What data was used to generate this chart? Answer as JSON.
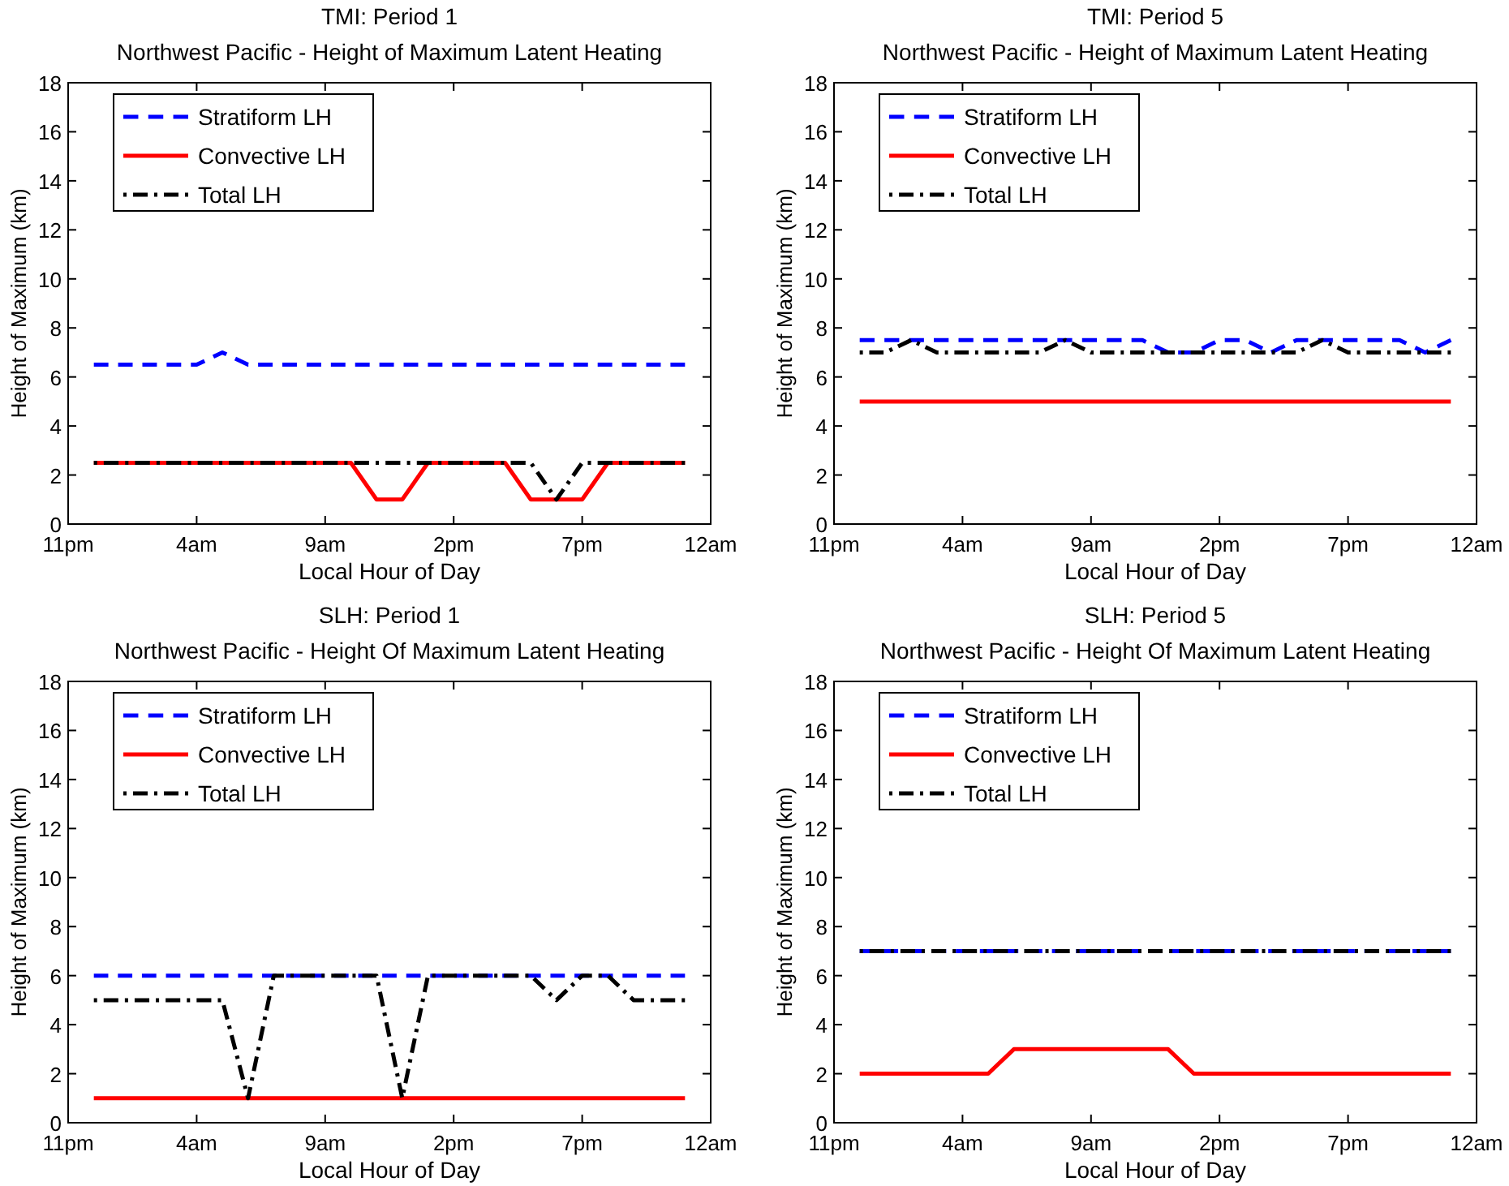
{
  "chart_data": [
    {
      "type": "line",
      "title": "TMI: Period 1",
      "subtitle": "Northwest Pacific - Height of Maximum Latent Heating",
      "xlabel": "Local Hour of Day",
      "ylabel": "Height of Maximum (km)",
      "categories": [
        "11pm",
        null,
        null,
        null,
        null,
        "4am",
        null,
        null,
        null,
        null,
        "9am",
        null,
        null,
        null,
        null,
        "2pm",
        null,
        null,
        null,
        null,
        "7pm",
        null,
        null,
        null,
        null,
        "12am"
      ],
      "ylim": [
        0,
        18
      ],
      "yticks": [
        0,
        2,
        4,
        6,
        8,
        10,
        12,
        14,
        16,
        18
      ],
      "legend": "top left",
      "series": [
        {
          "name": "Stratiform LH",
          "color": "#0000ff",
          "line_style": "dashed",
          "values": [
            null,
            6.5,
            6.5,
            6.5,
            6.5,
            6.5,
            7,
            6.5,
            6.5,
            6.5,
            6.5,
            6.5,
            6.5,
            6.5,
            6.5,
            6.5,
            6.5,
            6.5,
            6.5,
            6.5,
            6.5,
            6.5,
            6.5,
            6.5,
            6.5,
            null
          ]
        },
        {
          "name": "Convective LH",
          "color": "#ff0000",
          "line_style": "solid",
          "values": [
            null,
            2.5,
            2.5,
            2.5,
            2.5,
            2.5,
            2.5,
            2.5,
            2.5,
            2.5,
            2.5,
            2.5,
            1,
            1,
            2.5,
            2.5,
            2.5,
            2.5,
            1,
            1,
            1,
            2.5,
            2.5,
            2.5,
            2.5,
            null
          ]
        },
        {
          "name": "Total LH",
          "color": "#000000",
          "line_style": "dashdot",
          "values": [
            null,
            2.5,
            2.5,
            2.5,
            2.5,
            2.5,
            2.5,
            2.5,
            2.5,
            2.5,
            2.5,
            2.5,
            2.5,
            2.5,
            2.5,
            2.5,
            2.5,
            2.5,
            2.5,
            1,
            2.5,
            2.5,
            2.5,
            2.5,
            2.5,
            null
          ]
        }
      ]
    },
    {
      "type": "line",
      "title": "TMI: Period 5",
      "subtitle": "Northwest Pacific - Height of Maximum Latent Heating",
      "xlabel": "Local Hour of Day",
      "ylabel": "Height of Maximum (km)",
      "categories": [
        "11pm",
        null,
        null,
        null,
        null,
        "4am",
        null,
        null,
        null,
        null,
        "9am",
        null,
        null,
        null,
        null,
        "2pm",
        null,
        null,
        null,
        null,
        "7pm",
        null,
        null,
        null,
        null,
        "12am"
      ],
      "ylim": [
        0,
        18
      ],
      "yticks": [
        0,
        2,
        4,
        6,
        8,
        10,
        12,
        14,
        16,
        18
      ],
      "legend": "top left",
      "series": [
        {
          "name": "Stratiform LH",
          "color": "#0000ff",
          "line_style": "dashed",
          "values": [
            null,
            7.5,
            7.5,
            7.5,
            7.5,
            7.5,
            7.5,
            7.5,
            7.5,
            7.5,
            7.5,
            7.5,
            7.5,
            7,
            7,
            7.5,
            7.5,
            7,
            7.5,
            7.5,
            7.5,
            7.5,
            7.5,
            7,
            7.5,
            null
          ]
        },
        {
          "name": "Convective LH",
          "color": "#ff0000",
          "line_style": "solid",
          "values": [
            null,
            5,
            5,
            5,
            5,
            5,
            5,
            5,
            5,
            5,
            5,
            5,
            5,
            5,
            5,
            5,
            5,
            5,
            5,
            5,
            5,
            5,
            5,
            5,
            5,
            null
          ]
        },
        {
          "name": "Total LH",
          "color": "#000000",
          "line_style": "dashdot",
          "values": [
            null,
            7,
            7,
            7.5,
            7,
            7,
            7,
            7,
            7,
            7.5,
            7,
            7,
            7,
            7,
            7,
            7,
            7,
            7,
            7,
            7.5,
            7,
            7,
            7,
            7,
            7,
            null
          ]
        }
      ]
    },
    {
      "type": "line",
      "title": "SLH: Period 1",
      "subtitle": "Northwest Pacific - Height Of Maximum Latent Heating",
      "xlabel": "Local Hour of Day",
      "ylabel": "Height of Maximum (km)",
      "categories": [
        "11pm",
        null,
        null,
        null,
        null,
        "4am",
        null,
        null,
        null,
        null,
        "9am",
        null,
        null,
        null,
        null,
        "2pm",
        null,
        null,
        null,
        null,
        "7pm",
        null,
        null,
        null,
        null,
        "12am"
      ],
      "ylim": [
        0,
        18
      ],
      "yticks": [
        0,
        2,
        4,
        6,
        8,
        10,
        12,
        14,
        16,
        18
      ],
      "legend": "top left",
      "series": [
        {
          "name": "Stratiform LH",
          "color": "#0000ff",
          "line_style": "dashed",
          "values": [
            null,
            6,
            6,
            6,
            6,
            6,
            6,
            6,
            6,
            6,
            6,
            6,
            6,
            6,
            6,
            6,
            6,
            6,
            6,
            6,
            6,
            6,
            6,
            6,
            6,
            null
          ]
        },
        {
          "name": "Convective LH",
          "color": "#ff0000",
          "line_style": "solid",
          "values": [
            null,
            1,
            1,
            1,
            1,
            1,
            1,
            1,
            1,
            1,
            1,
            1,
            1,
            1,
            1,
            1,
            1,
            1,
            1,
            1,
            1,
            1,
            1,
            1,
            1,
            null
          ]
        },
        {
          "name": "Total LH",
          "color": "#000000",
          "line_style": "dashdot",
          "values": [
            null,
            5,
            5,
            5,
            5,
            5,
            5,
            1,
            6,
            6,
            6,
            6,
            6,
            1,
            6,
            6,
            6,
            6,
            6,
            5,
            6,
            6,
            5,
            5,
            5,
            null
          ]
        }
      ]
    },
    {
      "type": "line",
      "title": "SLH: Period 5",
      "subtitle": "Northwest Pacific - Height Of Maximum Latent Heating",
      "xlabel": "Local Hour of Day",
      "ylabel": "Height of Maximum (km)",
      "categories": [
        "11pm",
        null,
        null,
        null,
        null,
        "4am",
        null,
        null,
        null,
        null,
        "9am",
        null,
        null,
        null,
        null,
        "2pm",
        null,
        null,
        null,
        null,
        "7pm",
        null,
        null,
        null,
        null,
        "12am"
      ],
      "ylim": [
        0,
        18
      ],
      "yticks": [
        0,
        2,
        4,
        6,
        8,
        10,
        12,
        14,
        16,
        18
      ],
      "legend": "top left",
      "series": [
        {
          "name": "Stratiform LH",
          "color": "#0000ff",
          "line_style": "dashed",
          "values": [
            null,
            7,
            7,
            7,
            7,
            7,
            7,
            7,
            7,
            7,
            7,
            7,
            7,
            7,
            7,
            7,
            7,
            7,
            7,
            7,
            7,
            7,
            7,
            7,
            7,
            null
          ]
        },
        {
          "name": "Convective LH",
          "color": "#ff0000",
          "line_style": "solid",
          "values": [
            null,
            2,
            2,
            2,
            2,
            2,
            2,
            3,
            3,
            3,
            3,
            3,
            3,
            3,
            2,
            2,
            2,
            2,
            2,
            2,
            2,
            2,
            2,
            2,
            2,
            null
          ]
        },
        {
          "name": "Total LH",
          "color": "#000000",
          "line_style": "dashdot",
          "values": [
            null,
            7,
            7,
            7,
            7,
            7,
            7,
            7,
            7,
            7,
            7,
            7,
            7,
            7,
            7,
            7,
            7,
            7,
            7,
            7,
            7,
            7,
            7,
            7,
            7,
            null
          ]
        }
      ]
    }
  ]
}
